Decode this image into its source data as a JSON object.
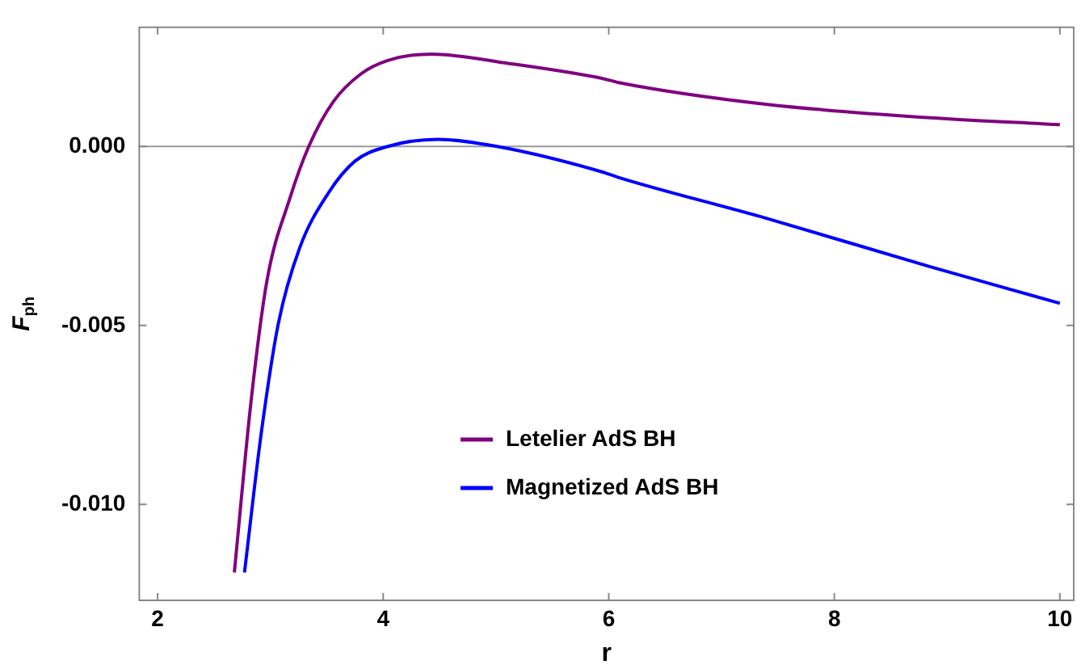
{
  "chart_data": {
    "type": "line",
    "xlabel": "r",
    "ylabel": "F$_{ph}$",
    "xlim": [
      1.83,
      10.13
    ],
    "ylim": [
      -0.0127,
      0.00335
    ],
    "xticks": [
      2,
      4,
      6,
      8,
      10
    ],
    "yticks": [
      {
        "value": 0,
        "label": "0.000"
      },
      {
        "value": -0.005,
        "label": "-0.005"
      },
      {
        "value": -0.01,
        "label": "-0.010"
      }
    ],
    "grid": false,
    "legend": "bottom right",
    "marker": "none",
    "line_style": "solid",
    "ref_lines": [
      {
        "axis": "y",
        "value": 0,
        "color": "#999999"
      }
    ],
    "series": [
      {
        "name": "Letelier AdS BH",
        "color": "#800080",
        "x": [
          2.68,
          2.83,
          2.97,
          3.17,
          3.34,
          3.56,
          3.8,
          4.04,
          4.43,
          5.11,
          5.94,
          6.08,
          7.39,
          8.85,
          10
        ],
        "values": [
          -0.0119,
          -0.00707,
          -0.00374,
          -0.00147,
          0,
          0.00126,
          0.00202,
          0.0024,
          0.00258,
          0.00232,
          0.0019,
          0.00179,
          0.00118,
          0.0008,
          0.00061
        ]
      },
      {
        "name": "Magnetized AdS BH",
        "color": "#0000ff",
        "x": [
          2.77,
          2.92,
          3.07,
          3.26,
          3.51,
          3.75,
          4.04,
          4.48,
          5.01,
          5.94,
          6.08,
          7.39,
          8.85,
          10
        ],
        "values": [
          -0.0119,
          -0.00798,
          -0.00495,
          -0.00283,
          -0.00132,
          -0.00041,
          0,
          0.0002,
          0,
          -0.00071,
          -0.00086,
          -0.002,
          -0.00336,
          -0.00438
        ]
      }
    ]
  }
}
